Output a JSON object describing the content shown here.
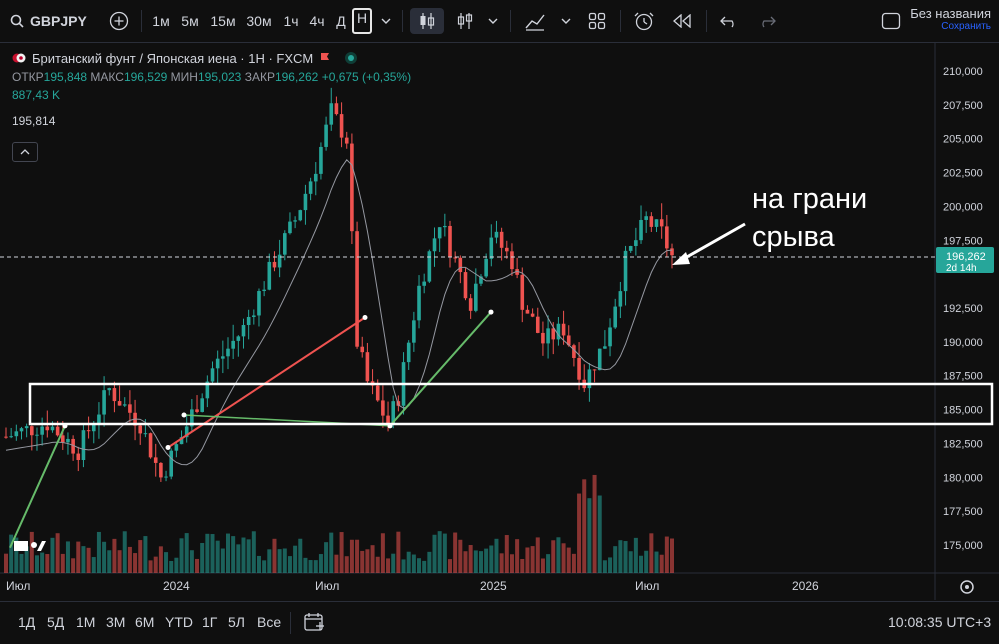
{
  "toolbar": {
    "symbol": "GBPJPY",
    "intervals": [
      "1м",
      "5м",
      "15м",
      "30м",
      "1ч",
      "4ч",
      "Д",
      "Н"
    ],
    "active_interval": "Н",
    "layout_title": "Без названия",
    "layout_sub": "Сохранить"
  },
  "legend": {
    "title": "Британский фунт / Японская иена · 1Н · FXCM",
    "open_label": "ОТКР",
    "open": "195,848",
    "high_label": "МАКС",
    "high": "196,529",
    "low_label": "МИН",
    "low": "195,023",
    "close_label": "ЗАКР",
    "close": "196,262",
    "change": "+0,675 (+0,35%)",
    "volume": "887,43 K",
    "ma_value": "195,814"
  },
  "price_axis": {
    "ticks": [
      "210,000",
      "207,500",
      "205,000",
      "202,500",
      "200,000",
      "197,500",
      "192,500",
      "190,000",
      "187,500",
      "185,000",
      "182,500",
      "180,000",
      "177,500",
      "175,000"
    ],
    "current_price": "196,262",
    "countdown": "2d 14h"
  },
  "time_axis": {
    "labels": [
      "Июл",
      "2024",
      "Июл",
      "2025",
      "Июл",
      "2026"
    ]
  },
  "annotation": {
    "line1": "на грани",
    "line2": "срыва"
  },
  "bottom": {
    "ranges": [
      "1Д",
      "5Д",
      "1М",
      "3М",
      "6М",
      "YTD",
      "1Г",
      "5Л",
      "Все"
    ],
    "clock": "10:08:35 UTC+3"
  },
  "colors": {
    "up": "#26a69a",
    "down": "#ef5350",
    "background": "#0f0f0f",
    "price_label": "#26a69a"
  }
}
